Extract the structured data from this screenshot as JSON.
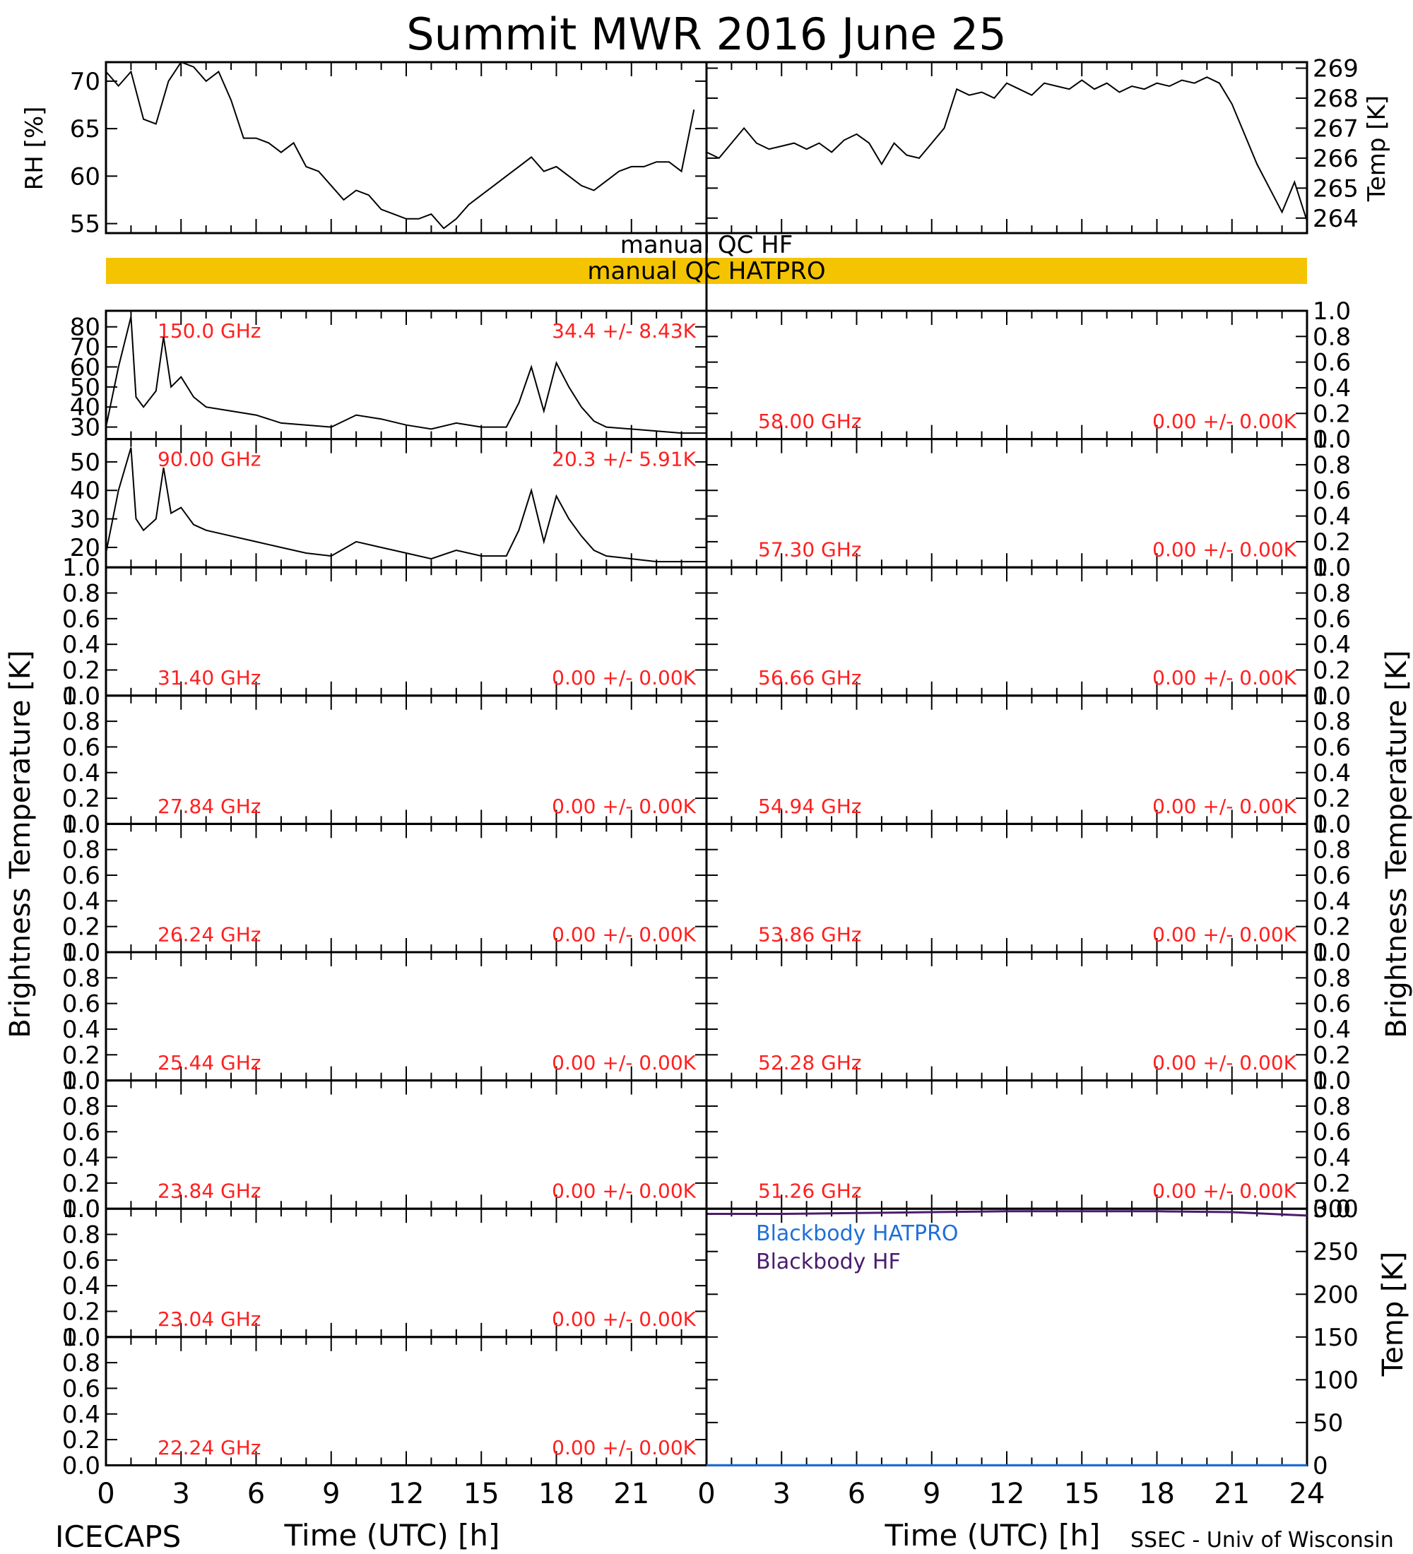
{
  "title": "Summit MWR 2016 June 25",
  "footer": {
    "left_label": "ICECAPS",
    "credit": "SSEC - Univ of Wisconsin",
    "xlabel": "Time (UTC) [h]",
    "x_ticks": [
      "0",
      "3",
      "6",
      "9",
      "12",
      "15",
      "18",
      "21",
      "24"
    ]
  },
  "qc": {
    "hf_label": "manual QC HF",
    "hatpro_label": "manual QC HATPRO",
    "hatpro_flag_color": "#f5c400"
  },
  "colors": {
    "label_red": "#ff2020",
    "hatpro_blue": "#1e6fd9",
    "hf_purple": "#4b1b6e",
    "trace": "#000000"
  },
  "left_axis_title": "Brightness Temperature [K]",
  "right_axis_title": "Brightness Temperature [K]",
  "chart_data": [
    {
      "id": "rh",
      "type": "line",
      "ylabel": "RH [%]",
      "ylim": [
        54,
        72
      ],
      "yticks": [
        "55",
        "60",
        "65",
        "70"
      ],
      "x": [
        0,
        0.5,
        1,
        1.5,
        2,
        2.5,
        3,
        3.5,
        4,
        4.5,
        5,
        5.5,
        6,
        6.5,
        7,
        7.5,
        8,
        8.5,
        9,
        9.5,
        10,
        10.5,
        11,
        11.5,
        12,
        12.5,
        13,
        13.5,
        14,
        14.5,
        15,
        15.5,
        16,
        16.5,
        17,
        17.5,
        18,
        18.5,
        19,
        19.5,
        20,
        20.5,
        21,
        21.5,
        22,
        22.5,
        23,
        23.5
      ],
      "y": [
        71,
        69.5,
        71,
        66,
        65.5,
        70,
        72,
        71.5,
        70,
        71,
        68,
        64,
        64,
        63.5,
        62.5,
        63.5,
        61,
        60.5,
        59,
        57.5,
        58.5,
        58,
        56.5,
        56,
        55.5,
        55.5,
        56,
        54.5,
        55.5,
        57,
        58,
        59,
        60,
        61,
        62,
        60.5,
        61,
        60,
        59,
        58.5,
        59.5,
        60.5,
        61,
        61,
        61.5,
        61.5,
        60.5,
        67
      ]
    },
    {
      "id": "temp",
      "type": "line",
      "ylabel": "Temp [K]",
      "ylim": [
        263.5,
        269.2
      ],
      "yticks": [
        "264",
        "265",
        "266",
        "267",
        "268",
        "269"
      ],
      "x": [
        0,
        0.5,
        1,
        1.5,
        2,
        2.5,
        3,
        3.5,
        4,
        4.5,
        5,
        5.5,
        6,
        6.5,
        7,
        7.5,
        8,
        8.5,
        9,
        9.5,
        10,
        10.5,
        11,
        11.5,
        12,
        12.5,
        13,
        13.5,
        14,
        14.5,
        15,
        15.5,
        16,
        16.5,
        17,
        17.5,
        18,
        18.5,
        19,
        19.5,
        20,
        20.5,
        21,
        21.5,
        22,
        22.5,
        23,
        23.5,
        24
      ],
      "y": [
        266.2,
        266,
        266.5,
        267,
        266.5,
        266.3,
        266.4,
        266.5,
        266.3,
        266.5,
        266.2,
        266.6,
        266.8,
        266.5,
        265.8,
        266.5,
        266.1,
        266,
        266.5,
        267,
        268.3,
        268.1,
        268.2,
        268,
        268.5,
        268.3,
        268.1,
        268.5,
        268.4,
        268.3,
        268.6,
        268.3,
        268.5,
        268.2,
        268.4,
        268.3,
        268.5,
        268.4,
        268.6,
        268.5,
        268.7,
        268.5,
        267.8,
        266.8,
        265.8,
        265,
        264.2,
        265.2,
        263.9
      ]
    },
    {
      "id": "ch150",
      "type": "line",
      "frequency_label": "150.0 GHz",
      "stats_label": "34.4 +/- 8.43K",
      "ylim": [
        24,
        88
      ],
      "yticks": [
        "30",
        "40",
        "50",
        "60",
        "70",
        "80"
      ],
      "x": [
        0,
        0.5,
        1,
        1.2,
        1.5,
        2,
        2.3,
        2.6,
        3,
        3.5,
        4,
        5,
        6,
        7,
        8,
        9,
        10,
        11,
        12,
        13,
        14,
        15,
        16,
        16.5,
        17,
        17.5,
        18,
        18.5,
        19,
        19.5,
        20,
        21,
        22,
        23,
        24
      ],
      "y": [
        30,
        60,
        85,
        45,
        40,
        48,
        75,
        50,
        55,
        45,
        40,
        38,
        36,
        32,
        31,
        30,
        36,
        34,
        31,
        29,
        32,
        30,
        30,
        42,
        60,
        38,
        62,
        50,
        40,
        33,
        30,
        29,
        28,
        27,
        27
      ]
    },
    {
      "id": "ch90",
      "type": "line",
      "frequency_label": "90.00 GHz",
      "stats_label": "20.3 +/- 5.91K",
      "ylim": [
        13,
        58
      ],
      "yticks": [
        "20",
        "30",
        "40",
        "50"
      ],
      "x": [
        0,
        0.5,
        1,
        1.2,
        1.5,
        2,
        2.3,
        2.6,
        3,
        3.5,
        4,
        5,
        6,
        7,
        8,
        9,
        10,
        11,
        12,
        13,
        14,
        15,
        16,
        16.5,
        17,
        17.5,
        18,
        18.5,
        19,
        19.5,
        20,
        21,
        22,
        23,
        24
      ],
      "y": [
        18,
        40,
        55,
        30,
        26,
        30,
        48,
        32,
        34,
        28,
        26,
        24,
        22,
        20,
        18,
        17,
        22,
        20,
        18,
        16,
        19,
        17,
        17,
        26,
        40,
        22,
        38,
        30,
        24,
        19,
        17,
        16,
        15,
        15,
        15
      ]
    },
    {
      "id": "ch3140",
      "type": "line",
      "frequency_label": "31.40 GHz",
      "stats_label": "0.00 +/- 0.00K",
      "ylim": [
        0,
        1
      ],
      "x": [],
      "y": []
    },
    {
      "id": "ch2784",
      "type": "line",
      "frequency_label": "27.84 GHz",
      "stats_label": "0.00 +/- 0.00K",
      "ylim": [
        0,
        1
      ],
      "x": [],
      "y": []
    },
    {
      "id": "ch2624",
      "type": "line",
      "frequency_label": "26.24 GHz",
      "stats_label": "0.00 +/- 0.00K",
      "ylim": [
        0,
        1
      ],
      "x": [],
      "y": []
    },
    {
      "id": "ch2544",
      "type": "line",
      "frequency_label": "25.44 GHz",
      "stats_label": "0.00 +/- 0.00K",
      "ylim": [
        0,
        1
      ],
      "x": [],
      "y": []
    },
    {
      "id": "ch2384",
      "type": "line",
      "frequency_label": "23.84 GHz",
      "stats_label": "0.00 +/- 0.00K",
      "ylim": [
        0,
        1
      ],
      "x": [],
      "y": []
    },
    {
      "id": "ch2304",
      "type": "line",
      "frequency_label": "23.04 GHz",
      "stats_label": "0.00 +/- 0.00K",
      "ylim": [
        0,
        1
      ],
      "x": [],
      "y": []
    },
    {
      "id": "ch2224",
      "type": "line",
      "frequency_label": "22.24 GHz",
      "stats_label": "0.00 +/- 0.00K",
      "ylim": [
        0,
        1
      ],
      "x": [],
      "y": []
    },
    {
      "id": "ch5800",
      "type": "line",
      "frequency_label": "58.00 GHz",
      "stats_label": "0.00 +/- 0.00K",
      "ylim": [
        0,
        1
      ],
      "x": [],
      "y": []
    },
    {
      "id": "ch5730",
      "type": "line",
      "frequency_label": "57.30 GHz",
      "stats_label": "0.00 +/- 0.00K",
      "ylim": [
        0,
        1
      ],
      "x": [],
      "y": []
    },
    {
      "id": "ch5666",
      "type": "line",
      "frequency_label": "56.66 GHz",
      "stats_label": "0.00 +/- 0.00K",
      "ylim": [
        0,
        1
      ],
      "x": [],
      "y": []
    },
    {
      "id": "ch5494",
      "type": "line",
      "frequency_label": "54.94 GHz",
      "stats_label": "0.00 +/- 0.00K",
      "ylim": [
        0,
        1
      ],
      "x": [],
      "y": []
    },
    {
      "id": "ch5386",
      "type": "line",
      "frequency_label": "53.86 GHz",
      "stats_label": "0.00 +/- 0.00K",
      "ylim": [
        0,
        1
      ],
      "x": [],
      "y": []
    },
    {
      "id": "ch5228",
      "type": "line",
      "frequency_label": "52.28 GHz",
      "stats_label": "0.00 +/- 0.00K",
      "ylim": [
        0,
        1
      ],
      "x": [],
      "y": []
    },
    {
      "id": "ch5126",
      "type": "line",
      "frequency_label": "51.26 GHz",
      "stats_label": "0.00 +/- 0.00K",
      "ylim": [
        0,
        1
      ],
      "x": [],
      "y": []
    },
    {
      "id": "blackbody",
      "type": "line",
      "ylabel": "Temp [K]",
      "ylim": [
        0,
        300
      ],
      "yticks": [
        "0",
        "50",
        "100",
        "150",
        "200",
        "250",
        "300"
      ],
      "series": [
        {
          "name": "Blackbody HATPRO",
          "x": [
            0,
            24
          ],
          "y": [
            0,
            0
          ]
        },
        {
          "name": "Blackbody HF",
          "x": [
            0,
            3,
            6,
            9,
            12,
            15,
            18,
            21,
            24
          ],
          "y": [
            294,
            294,
            295,
            296,
            297,
            297,
            297,
            296,
            292
          ]
        }
      ]
    }
  ]
}
